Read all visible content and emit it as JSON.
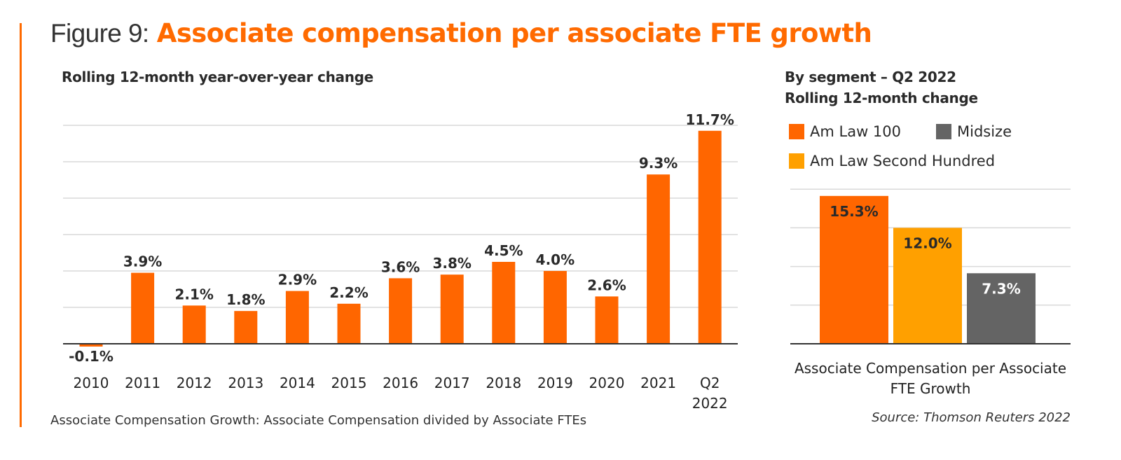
{
  "figure": {
    "prefix": "Figure 9:",
    "title": "Associate compensation per associate FTE growth"
  },
  "footnote": "Associate Compensation Growth: Associate Compensation divided by Associate FTEs",
  "source": "Source: Thomson Reuters 2022",
  "colors": {
    "accent": "#ff6a00",
    "am_law_100": "#ff6600",
    "am_law_second_hundred": "#ffa000",
    "midsize": "#646464",
    "grid": "#d9d9d9",
    "axis": "#333333"
  },
  "chart_data": [
    {
      "type": "bar",
      "title": "Rolling 12-month year-over-year change",
      "xlabel": "",
      "ylabel": "",
      "categories": [
        "2010",
        "2011",
        "2012",
        "2013",
        "2014",
        "2015",
        "2016",
        "2017",
        "2018",
        "2019",
        "2020",
        "2021",
        "Q2 2022"
      ],
      "values": [
        -0.1,
        3.9,
        2.1,
        1.8,
        2.9,
        2.2,
        3.6,
        3.8,
        4.5,
        4.0,
        2.6,
        9.3,
        11.7
      ],
      "data_labels": [
        "-0.1%",
        "3.9%",
        "2.1%",
        "1.8%",
        "2.9%",
        "2.2%",
        "3.6%",
        "3.8%",
        "4.5%",
        "4.0%",
        "2.6%",
        "9.3%",
        "11.7%"
      ],
      "ylim": [
        0,
        12
      ],
      "y_gridlines": [
        2,
        4,
        6,
        8,
        10,
        12
      ],
      "grid": true,
      "unit": "%"
    },
    {
      "type": "bar",
      "title": "By segment –  Q2 2022",
      "subtitle": "Rolling 12-month change",
      "xlabel": "Associate Compensation per Associate FTE Growth",
      "categories": [
        "Am Law 100",
        "Am Law Second Hundred",
        "Midsize"
      ],
      "values": [
        15.3,
        12.0,
        7.3
      ],
      "data_labels": [
        "15.3%",
        "12.0%",
        "7.3%"
      ],
      "ylim": [
        0,
        16
      ],
      "y_gridlines": [
        4,
        8,
        12,
        16
      ],
      "grid": true,
      "legend": {
        "position": "top",
        "entries": [
          "Am Law 100",
          "Midsize",
          "Am Law Second Hundred"
        ]
      },
      "unit": "%"
    }
  ]
}
